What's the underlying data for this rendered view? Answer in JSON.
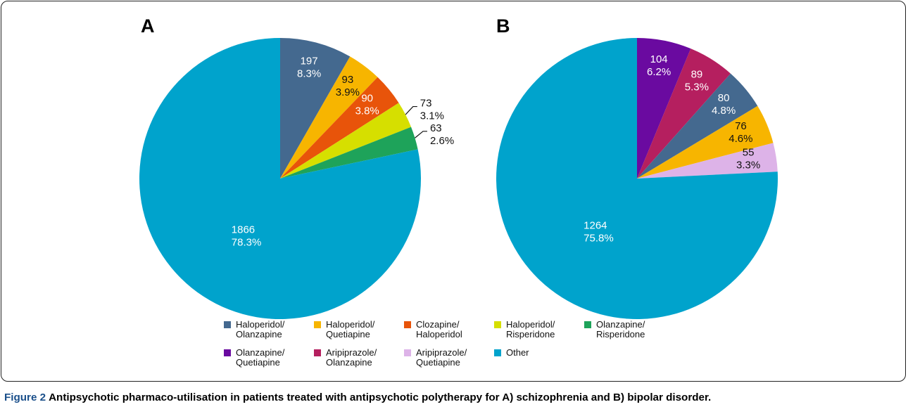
{
  "chart_data": [
    {
      "type": "pie",
      "title": "A",
      "categories": [
        "Haloperidol/ Olanzapine",
        "Haloperidol/ Quetiapine",
        "Clozapine/ Haloperidol",
        "Haloperidol/ Risperidone",
        "Olanzapine/ Risperidone",
        "Other"
      ],
      "values": [
        197,
        93,
        90,
        73,
        63,
        1866
      ],
      "percent_labels": [
        "8.3%",
        "3.9%",
        "3.8%",
        "3.1%",
        "2.6%",
        "78.3%"
      ]
    },
    {
      "type": "pie",
      "title": "B",
      "categories": [
        "Olanzapine/ Quetiapine",
        "Aripiprazole/ Olanzapine",
        "Haloperidol/ Olanzapine",
        "Haloperidol/ Quetiapine",
        "Aripiprazole/ Quetiapine",
        "Other"
      ],
      "values": [
        104,
        89,
        80,
        76,
        55,
        1264
      ],
      "percent_labels": [
        "6.2%",
        "5.3%",
        "4.8%",
        "4.6%",
        "3.3%",
        "75.8%"
      ]
    }
  ],
  "legend": [
    {
      "name": "Haloperidol/ Olanzapine",
      "color": "#44698f"
    },
    {
      "name": "Haloperidol/ Quetiapine",
      "color": "#f7b500"
    },
    {
      "name": "Clozapine/ Haloperidol",
      "color": "#e8540a"
    },
    {
      "name": "Haloperidol/ Risperidone",
      "color": "#d6df00"
    },
    {
      "name": "Olanzapine/ Risperidone",
      "color": "#1ea35a"
    },
    {
      "name": "Olanzapine/ Quetiapine",
      "color": "#6a0aa0"
    },
    {
      "name": "Aripiprazole/ Olanzapine",
      "color": "#b51f5f"
    },
    {
      "name": "Aripiprazole/ Quetiapine",
      "color": "#ddb3e8"
    },
    {
      "name": "Other",
      "color": "#00a3cc"
    }
  ],
  "caption": {
    "label": "Figure 2",
    "text": "Antipsychotic pharmaco-utilisation in patients treated with antipsychotic polytherapy for A) schizophrenia and B) bipolar disorder."
  }
}
